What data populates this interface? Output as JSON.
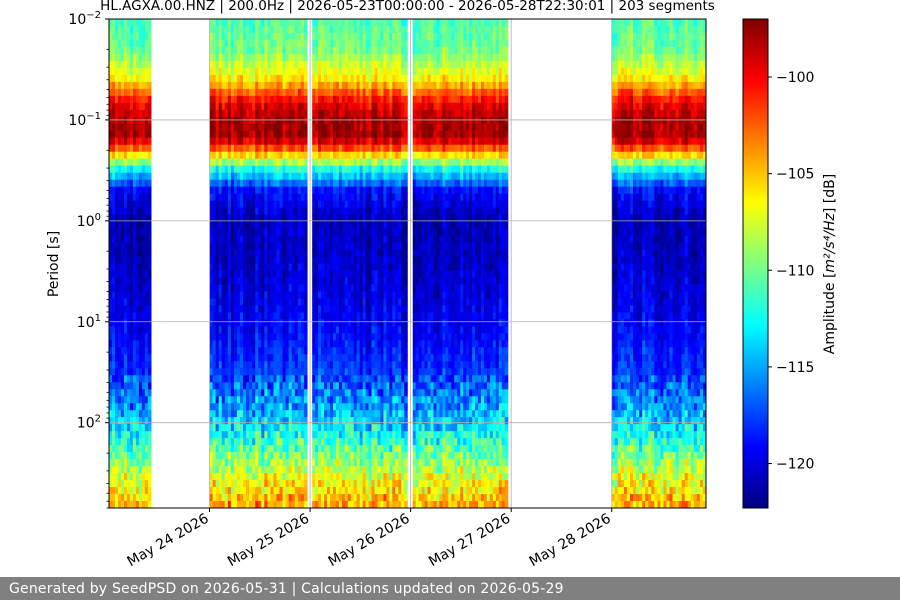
{
  "footer": {
    "text": "Generated by SeedPSD on 2026-05-31 | Calculations updated on 2026-05-29"
  },
  "chart_data": {
    "type": "heatmap",
    "title": "HL.AGXA.00.HNZ | 200.0Hz | 2026-05-23T00:00:00 - 2026-05-28T22:30:01 | 203 segments",
    "xlabel": "",
    "ylabel": "Period [s]",
    "y_scale": "log",
    "y_inverted": true,
    "ylim": [
      0.01,
      700
    ],
    "y_ticks": [
      {
        "value": 0.01,
        "base": "10",
        "exp": "−2"
      },
      {
        "value": 0.1,
        "base": "10",
        "exp": "−1"
      },
      {
        "value": 1,
        "base": "10",
        "exp": "0"
      },
      {
        "value": 10,
        "base": "10",
        "exp": "1"
      },
      {
        "value": 100,
        "base": "10",
        "exp": "2"
      }
    ],
    "x_start": "2026-05-23T00:00:00",
    "x_end": "2026-05-28T22:30:01",
    "x_ticks": [
      "May 24 2026",
      "May 25 2026",
      "May 26 2026",
      "May 27 2026",
      "May 28 2026"
    ],
    "x_tick_dates": [
      "2026-05-24",
      "2026-05-25",
      "2026-05-26",
      "2026-05-27",
      "2026-05-28"
    ],
    "grid": true,
    "data_segments": [
      {
        "start": "2026-05-23T00:00:00",
        "end": "2026-05-23T10:00:00"
      },
      {
        "start": "2026-05-24T00:00:00",
        "end": "2026-05-24T23:15:00"
      },
      {
        "start": "2026-05-25T00:30:00",
        "end": "2026-05-25T23:10:00"
      },
      {
        "start": "2026-05-26T00:30:00",
        "end": "2026-05-26T23:10:00"
      },
      {
        "start": "2026-05-28T00:00:00",
        "end": "2026-05-28T22:30:01"
      }
    ],
    "amplitude_profile": {
      "period_s": [
        0.01,
        0.02,
        0.04,
        0.06,
        0.08,
        0.1,
        0.15,
        0.2,
        0.3,
        0.5,
        1,
        3,
        10,
        30,
        100,
        300,
        700
      ],
      "amplitude_db": [
        -111,
        -110,
        -106,
        -101,
        -99,
        -98,
        -98,
        -103,
        -112,
        -119,
        -121,
        -120.5,
        -119.5,
        -118,
        -114,
        -108,
        -104
      ]
    },
    "colorbar": {
      "label_prefix": "Amplitude [",
      "label_unit": "m²/s⁴/Hz",
      "label_suffix": "] [dB]",
      "colormap": "jet",
      "range": [
        -122.3,
        -97
      ],
      "ticks": [
        "−100",
        "−105",
        "−110",
        "−115",
        "−120"
      ],
      "tick_values": [
        -100,
        -105,
        -110,
        -115,
        -120
      ]
    }
  }
}
